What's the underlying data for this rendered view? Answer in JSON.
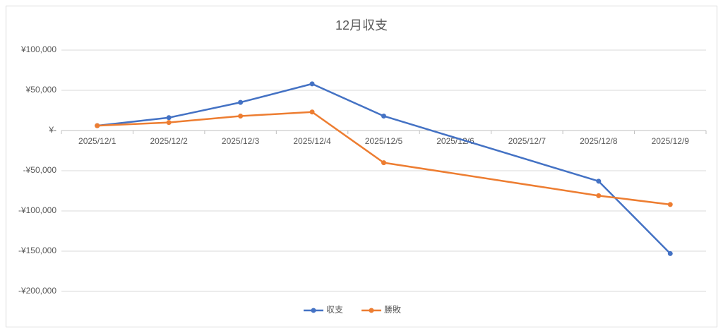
{
  "chart_data": {
    "type": "line",
    "title": "12月収支",
    "categories": [
      "2025/12/1",
      "2025/12/2",
      "2025/12/3",
      "2025/12/4",
      "2025/12/5",
      "2025/12/6",
      "2025/12/7",
      "2025/12/8",
      "2025/12/9"
    ],
    "series": [
      {
        "name": "収支",
        "color": "#4472c4",
        "values": [
          6000,
          16000,
          35000,
          58000,
          18000,
          null,
          null,
          -63000,
          -153000
        ]
      },
      {
        "name": "勝敗",
        "color": "#ed7d31",
        "values": [
          6000,
          10000,
          18000,
          23000,
          -40000,
          null,
          null,
          -81000,
          -92000
        ]
      }
    ],
    "ylim": [
      -200000,
      100000
    ],
    "yticks": [
      {
        "value": 100000,
        "label": "¥100,000"
      },
      {
        "value": 50000,
        "label": "¥50,000"
      },
      {
        "value": 0,
        "label": "¥-"
      },
      {
        "value": -50000,
        "label": "-¥50,000"
      },
      {
        "value": -100000,
        "label": "-¥100,000"
      },
      {
        "value": -150000,
        "label": "-¥150,000"
      },
      {
        "value": -200000,
        "label": "-¥200,000"
      }
    ],
    "grid": true,
    "connect_gaps": true,
    "legend": "bottom"
  }
}
